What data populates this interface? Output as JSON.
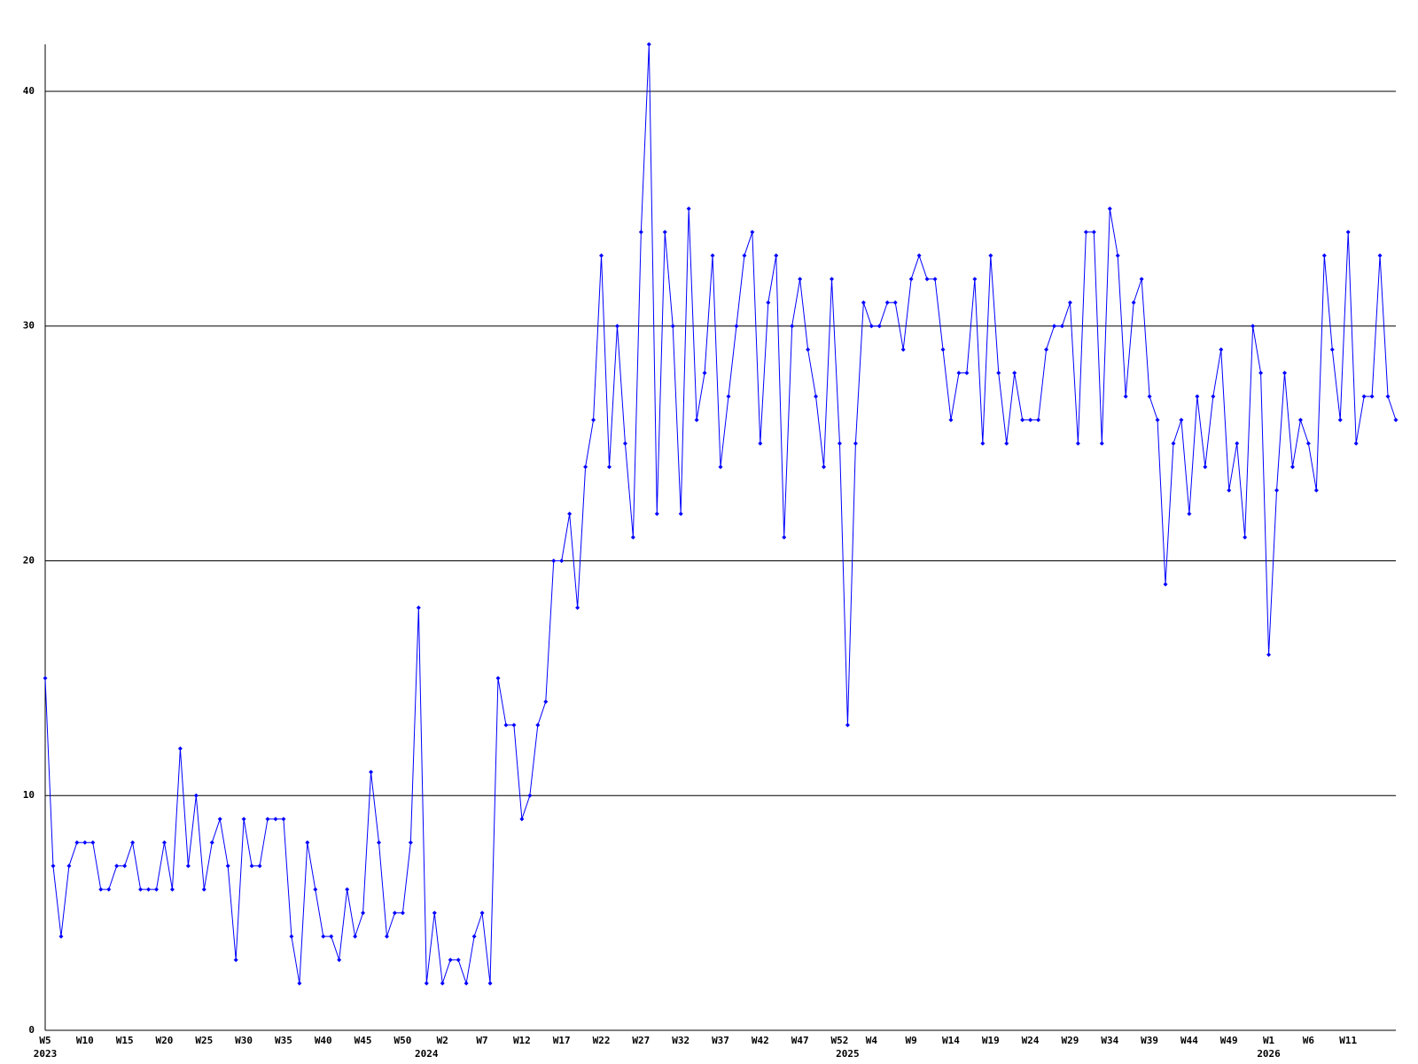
{
  "chart_data": {
    "type": "line",
    "color": "#0000ff",
    "grid": true,
    "ylim": [
      0,
      42
    ],
    "yticks": [
      0,
      10,
      20,
      30,
      40
    ],
    "categories": [
      "W5",
      null,
      null,
      null,
      null,
      "W10",
      null,
      null,
      null,
      null,
      "W15",
      null,
      null,
      null,
      null,
      "W20",
      null,
      null,
      null,
      null,
      "W25",
      null,
      null,
      null,
      null,
      "W30",
      null,
      null,
      null,
      null,
      "W35",
      null,
      null,
      null,
      null,
      "W40",
      null,
      null,
      null,
      null,
      "W45",
      null,
      null,
      null,
      null,
      "W50",
      null,
      null,
      null,
      null,
      "W2",
      null,
      null,
      null,
      null,
      "W7",
      null,
      null,
      null,
      null,
      "W12",
      null,
      null,
      null,
      null,
      "W17",
      null,
      null,
      null,
      null,
      "W22",
      null,
      null,
      null,
      null,
      "W27",
      null,
      null,
      null,
      null,
      "W32",
      null,
      null,
      null,
      null,
      "W37",
      null,
      null,
      null,
      null,
      "W42",
      null,
      null,
      null,
      null,
      "W47",
      null,
      null,
      null,
      null,
      "W52",
      null,
      null,
      null,
      "W4",
      null,
      null,
      null,
      null,
      "W9",
      null,
      null,
      null,
      null,
      "W14",
      null,
      null,
      null,
      null,
      "W19",
      null,
      null,
      null,
      null,
      "W24",
      null,
      null,
      null,
      null,
      "W29",
      null,
      null,
      null,
      null,
      "W34",
      null,
      null,
      null,
      null,
      "W39",
      null,
      null,
      null,
      null,
      "W44",
      null,
      null,
      null,
      null,
      "W49",
      null,
      null,
      null,
      null,
      "W1",
      null,
      null,
      null,
      null,
      "W6",
      null,
      null,
      null,
      null,
      "W11",
      null,
      null,
      null,
      null,
      null,
      null
    ],
    "year_labels": [
      "2023",
      null,
      null,
      null,
      null,
      null,
      null,
      null,
      null,
      null,
      null,
      null,
      null,
      null,
      null,
      null,
      null,
      null,
      null,
      null,
      null,
      null,
      null,
      null,
      null,
      null,
      null,
      null,
      null,
      null,
      null,
      null,
      null,
      null,
      null,
      null,
      null,
      null,
      null,
      null,
      null,
      null,
      null,
      null,
      null,
      null,
      null,
      null,
      "2024",
      null,
      null,
      null,
      null,
      null,
      null,
      null,
      null,
      null,
      null,
      null,
      null,
      null,
      null,
      null,
      null,
      null,
      null,
      null,
      null,
      null,
      null,
      null,
      null,
      null,
      null,
      null,
      null,
      null,
      null,
      null,
      null,
      null,
      null,
      null,
      null,
      null,
      null,
      null,
      null,
      null,
      null,
      null,
      null,
      null,
      null,
      null,
      null,
      null,
      null,
      null,
      null,
      "2025",
      null,
      null,
      null,
      null,
      null,
      null,
      null,
      null,
      null,
      null,
      null,
      null,
      null,
      null,
      null,
      null,
      null,
      null,
      null,
      null,
      null,
      null,
      null,
      null,
      null,
      null,
      null,
      null,
      null,
      null,
      null,
      null,
      null,
      null,
      null,
      null,
      null,
      null,
      null,
      null,
      null,
      null,
      null,
      null,
      null,
      null,
      null,
      null,
      null,
      null,
      null,
      null,
      "2026",
      null,
      null,
      null,
      null,
      null,
      null,
      null,
      null,
      null,
      null,
      null,
      null,
      null,
      null,
      null,
      null
    ],
    "values": [
      15,
      7,
      4,
      7,
      8,
      8,
      8,
      6,
      6,
      7,
      7,
      8,
      6,
      6,
      6,
      8,
      6,
      12,
      7,
      10,
      6,
      8,
      9,
      7,
      3,
      9,
      7,
      7,
      9,
      9,
      9,
      4,
      2,
      8,
      6,
      4,
      4,
      3,
      6,
      4,
      5,
      11,
      8,
      4,
      5,
      5,
      8,
      18,
      2,
      5,
      2,
      3,
      3,
      2,
      4,
      5,
      2,
      15,
      13,
      13,
      9,
      10,
      13,
      14,
      20,
      20,
      22,
      18,
      24,
      26,
      33,
      24,
      30,
      25,
      21,
      34,
      42,
      22,
      34,
      30,
      22,
      35,
      26,
      28,
      33,
      24,
      27,
      30,
      33,
      34,
      25,
      31,
      33,
      21,
      30,
      32,
      29,
      27,
      24,
      32,
      25,
      13,
      25,
      31,
      30,
      30,
      31,
      31,
      29,
      32,
      33,
      32,
      32,
      29,
      26,
      28,
      28,
      32,
      25,
      33,
      28,
      25,
      28,
      26,
      26,
      26,
      29,
      30,
      30,
      31,
      25,
      34,
      34,
      25,
      35,
      33,
      27,
      31,
      32,
      27,
      26,
      19,
      25,
      26,
      22,
      27,
      24,
      27,
      29,
      23,
      25,
      21,
      30,
      28,
      16,
      23,
      28,
      24,
      26,
      25,
      23,
      33,
      29,
      26,
      34,
      25,
      27,
      27,
      33,
      27,
      26
    ]
  }
}
